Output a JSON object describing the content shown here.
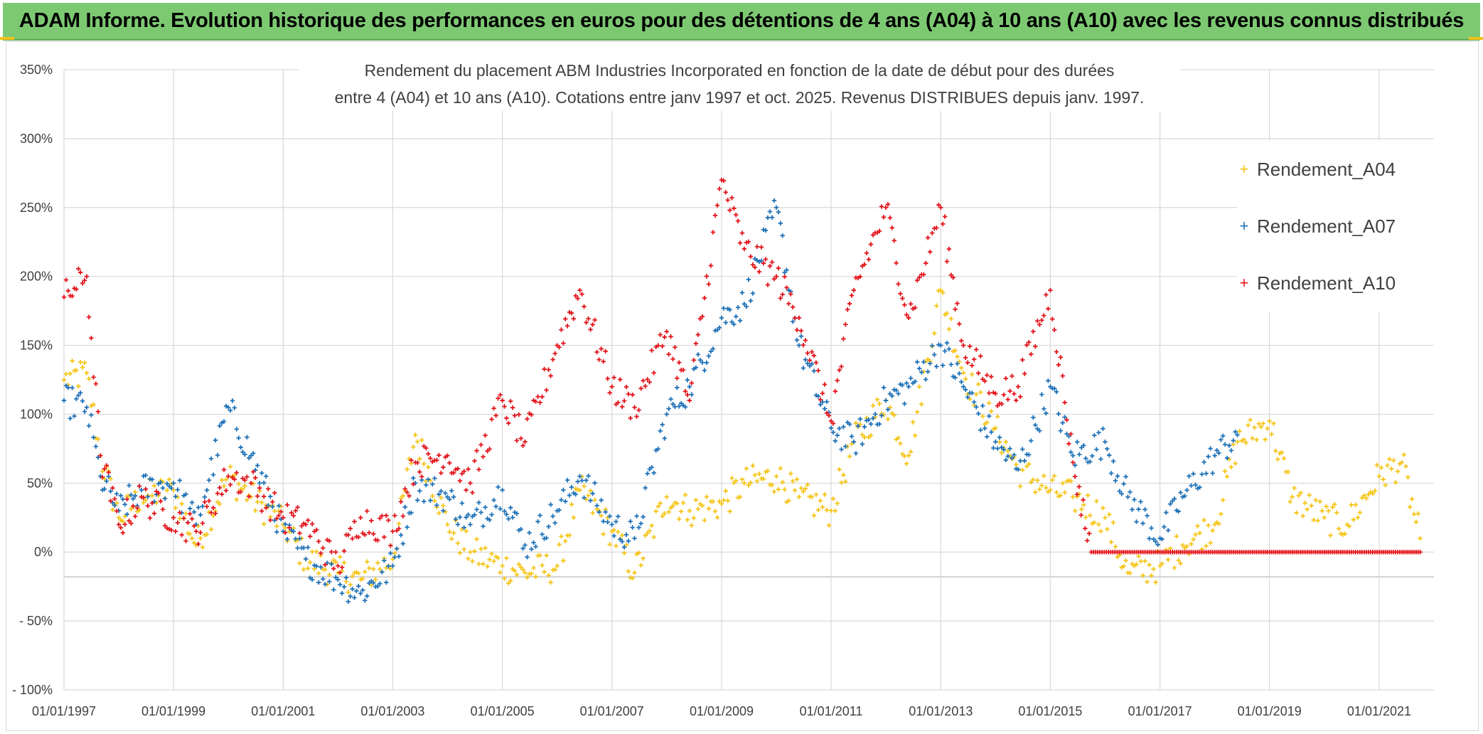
{
  "header": {
    "title": "ADAM Informe. Evolution historique des performances en euros pour des détentions de 4 ans (A04) à 10 ans (A10) avec les revenus connus distribués"
  },
  "chart_data": {
    "type": "scatter",
    "title_line1": "Rendement du placement ABM Industries Incorporated en fonction de la date de début pour des durées",
    "title_line2": "entre 4 (A04) et 10 ans (A10). Cotations entre janv 1997 et oct. 2025. Revenus DISTRIBUES depuis janv. 1997.",
    "xlabel": "",
    "ylabel": "",
    "x_range": [
      "1997-01-01",
      "2022-01-01"
    ],
    "y_range": [
      -100,
      350
    ],
    "y_ticks": [
      "350%",
      "300%",
      "250%",
      "200%",
      "150%",
      "100%",
      "50%",
      "0%",
      "- 50%",
      "- 100%"
    ],
    "x_ticks": [
      "01/01/1997",
      "01/01/1999",
      "01/01/2001",
      "01/01/2003",
      "01/01/2005",
      "01/01/2007",
      "01/01/2009",
      "01/01/2011",
      "01/01/2013",
      "01/01/2015",
      "01/01/2017",
      "01/01/2019",
      "01/01/2021"
    ],
    "grid": true,
    "legend_position": "top-right",
    "marker": "+",
    "series": [
      {
        "name": "Rendement_A04",
        "color": "#f5c518",
        "x": [
          "1997-01",
          "1997-06",
          "1997-09",
          "1998-01",
          "1998-06",
          "1999-01",
          "1999-06",
          "2000-01",
          "2000-06",
          "2001-01",
          "2001-06",
          "2002-01",
          "2002-06",
          "2003-01",
          "2003-06",
          "2004-01",
          "2004-06",
          "2005-01",
          "2005-06",
          "2006-01",
          "2006-06",
          "2007-01",
          "2007-06",
          "2008-01",
          "2008-06",
          "2009-01",
          "2009-06",
          "2010-01",
          "2010-06",
          "2011-01",
          "2011-06",
          "2012-01",
          "2012-06",
          "2013-01",
          "2013-06",
          "2014-01",
          "2014-06",
          "2015-01",
          "2015-06",
          "2016-01",
          "2016-06",
          "2017-01",
          "2017-06",
          "2018-01",
          "2018-06",
          "2019-01",
          "2019-06",
          "2020-01",
          "2020-06",
          "2021-01",
          "2021-06",
          "2021-10"
        ],
        "values": [
          125,
          130,
          70,
          25,
          40,
          45,
          5,
          55,
          40,
          20,
          -5,
          -15,
          -20,
          -5,
          85,
          20,
          0,
          -10,
          -15,
          -10,
          45,
          15,
          -15,
          40,
          30,
          35,
          50,
          55,
          40,
          30,
          80,
          110,
          70,
          190,
          130,
          90,
          60,
          45,
          40,
          25,
          -15,
          -10,
          5,
          20,
          80,
          95,
          40,
          25,
          20,
          55,
          65,
          10
        ]
      },
      {
        "name": "Rendement_A07",
        "color": "#1f72b8",
        "x": [
          "1997-01",
          "1997-06",
          "1997-09",
          "1998-01",
          "1998-06",
          "1999-01",
          "1999-06",
          "2000-01",
          "2000-06",
          "2001-01",
          "2001-06",
          "2002-01",
          "2002-06",
          "2003-01",
          "2003-06",
          "2004-01",
          "2004-06",
          "2005-01",
          "2005-06",
          "2006-01",
          "2006-06",
          "2007-01",
          "2007-06",
          "2008-01",
          "2008-06",
          "2009-01",
          "2009-06",
          "2010-01",
          "2010-06",
          "2011-01",
          "2011-06",
          "2012-01",
          "2012-06",
          "2013-01",
          "2013-06",
          "2014-01",
          "2014-06",
          "2015-01",
          "2015-06",
          "2016-01",
          "2016-06",
          "2017-01",
          "2017-06",
          "2018-01",
          "2018-06"
        ],
        "values": [
          110,
          105,
          55,
          30,
          45,
          50,
          20,
          105,
          70,
          15,
          -5,
          -20,
          -30,
          -10,
          50,
          40,
          20,
          45,
          5,
          30,
          55,
          20,
          10,
          100,
          120,
          170,
          180,
          250,
          150,
          90,
          80,
          110,
          120,
          150,
          120,
          80,
          60,
          120,
          70,
          80,
          40,
          10,
          40,
          70,
          85
        ]
      },
      {
        "name": "Rendement_A10",
        "color": "#e3141b",
        "x": [
          "1997-01",
          "1997-06",
          "1997-09",
          "1998-01",
          "1998-06",
          "1999-01",
          "1999-06",
          "2000-01",
          "2000-06",
          "2001-01",
          "2001-06",
          "2002-01",
          "2002-06",
          "2003-01",
          "2003-06",
          "2004-01",
          "2004-06",
          "2005-01",
          "2005-06",
          "2006-01",
          "2006-06",
          "2007-01",
          "2007-06",
          "2008-01",
          "2008-06",
          "2009-01",
          "2009-06",
          "2010-01",
          "2010-06",
          "2011-01",
          "2011-06",
          "2012-01",
          "2012-06",
          "2013-01",
          "2013-06",
          "2014-01",
          "2014-06",
          "2015-01",
          "2015-06",
          "2015-10",
          "2016-06",
          "2017-01",
          "2017-06",
          "2018-01",
          "2018-06",
          "2019-01",
          "2019-06",
          "2020-01",
          "2020-06",
          "2021-01",
          "2021-06",
          "2021-10"
        ],
        "values": [
          185,
          200,
          70,
          20,
          40,
          25,
          15,
          55,
          50,
          25,
          20,
          -10,
          25,
          15,
          65,
          70,
          50,
          110,
          80,
          150,
          190,
          120,
          105,
          160,
          110,
          270,
          220,
          200,
          170,
          95,
          190,
          250,
          170,
          250,
          150,
          115,
          120,
          190,
          65,
          0,
          0,
          0,
          0,
          0,
          0,
          0,
          0,
          0,
          0,
          0,
          0,
          0
        ]
      }
    ]
  }
}
